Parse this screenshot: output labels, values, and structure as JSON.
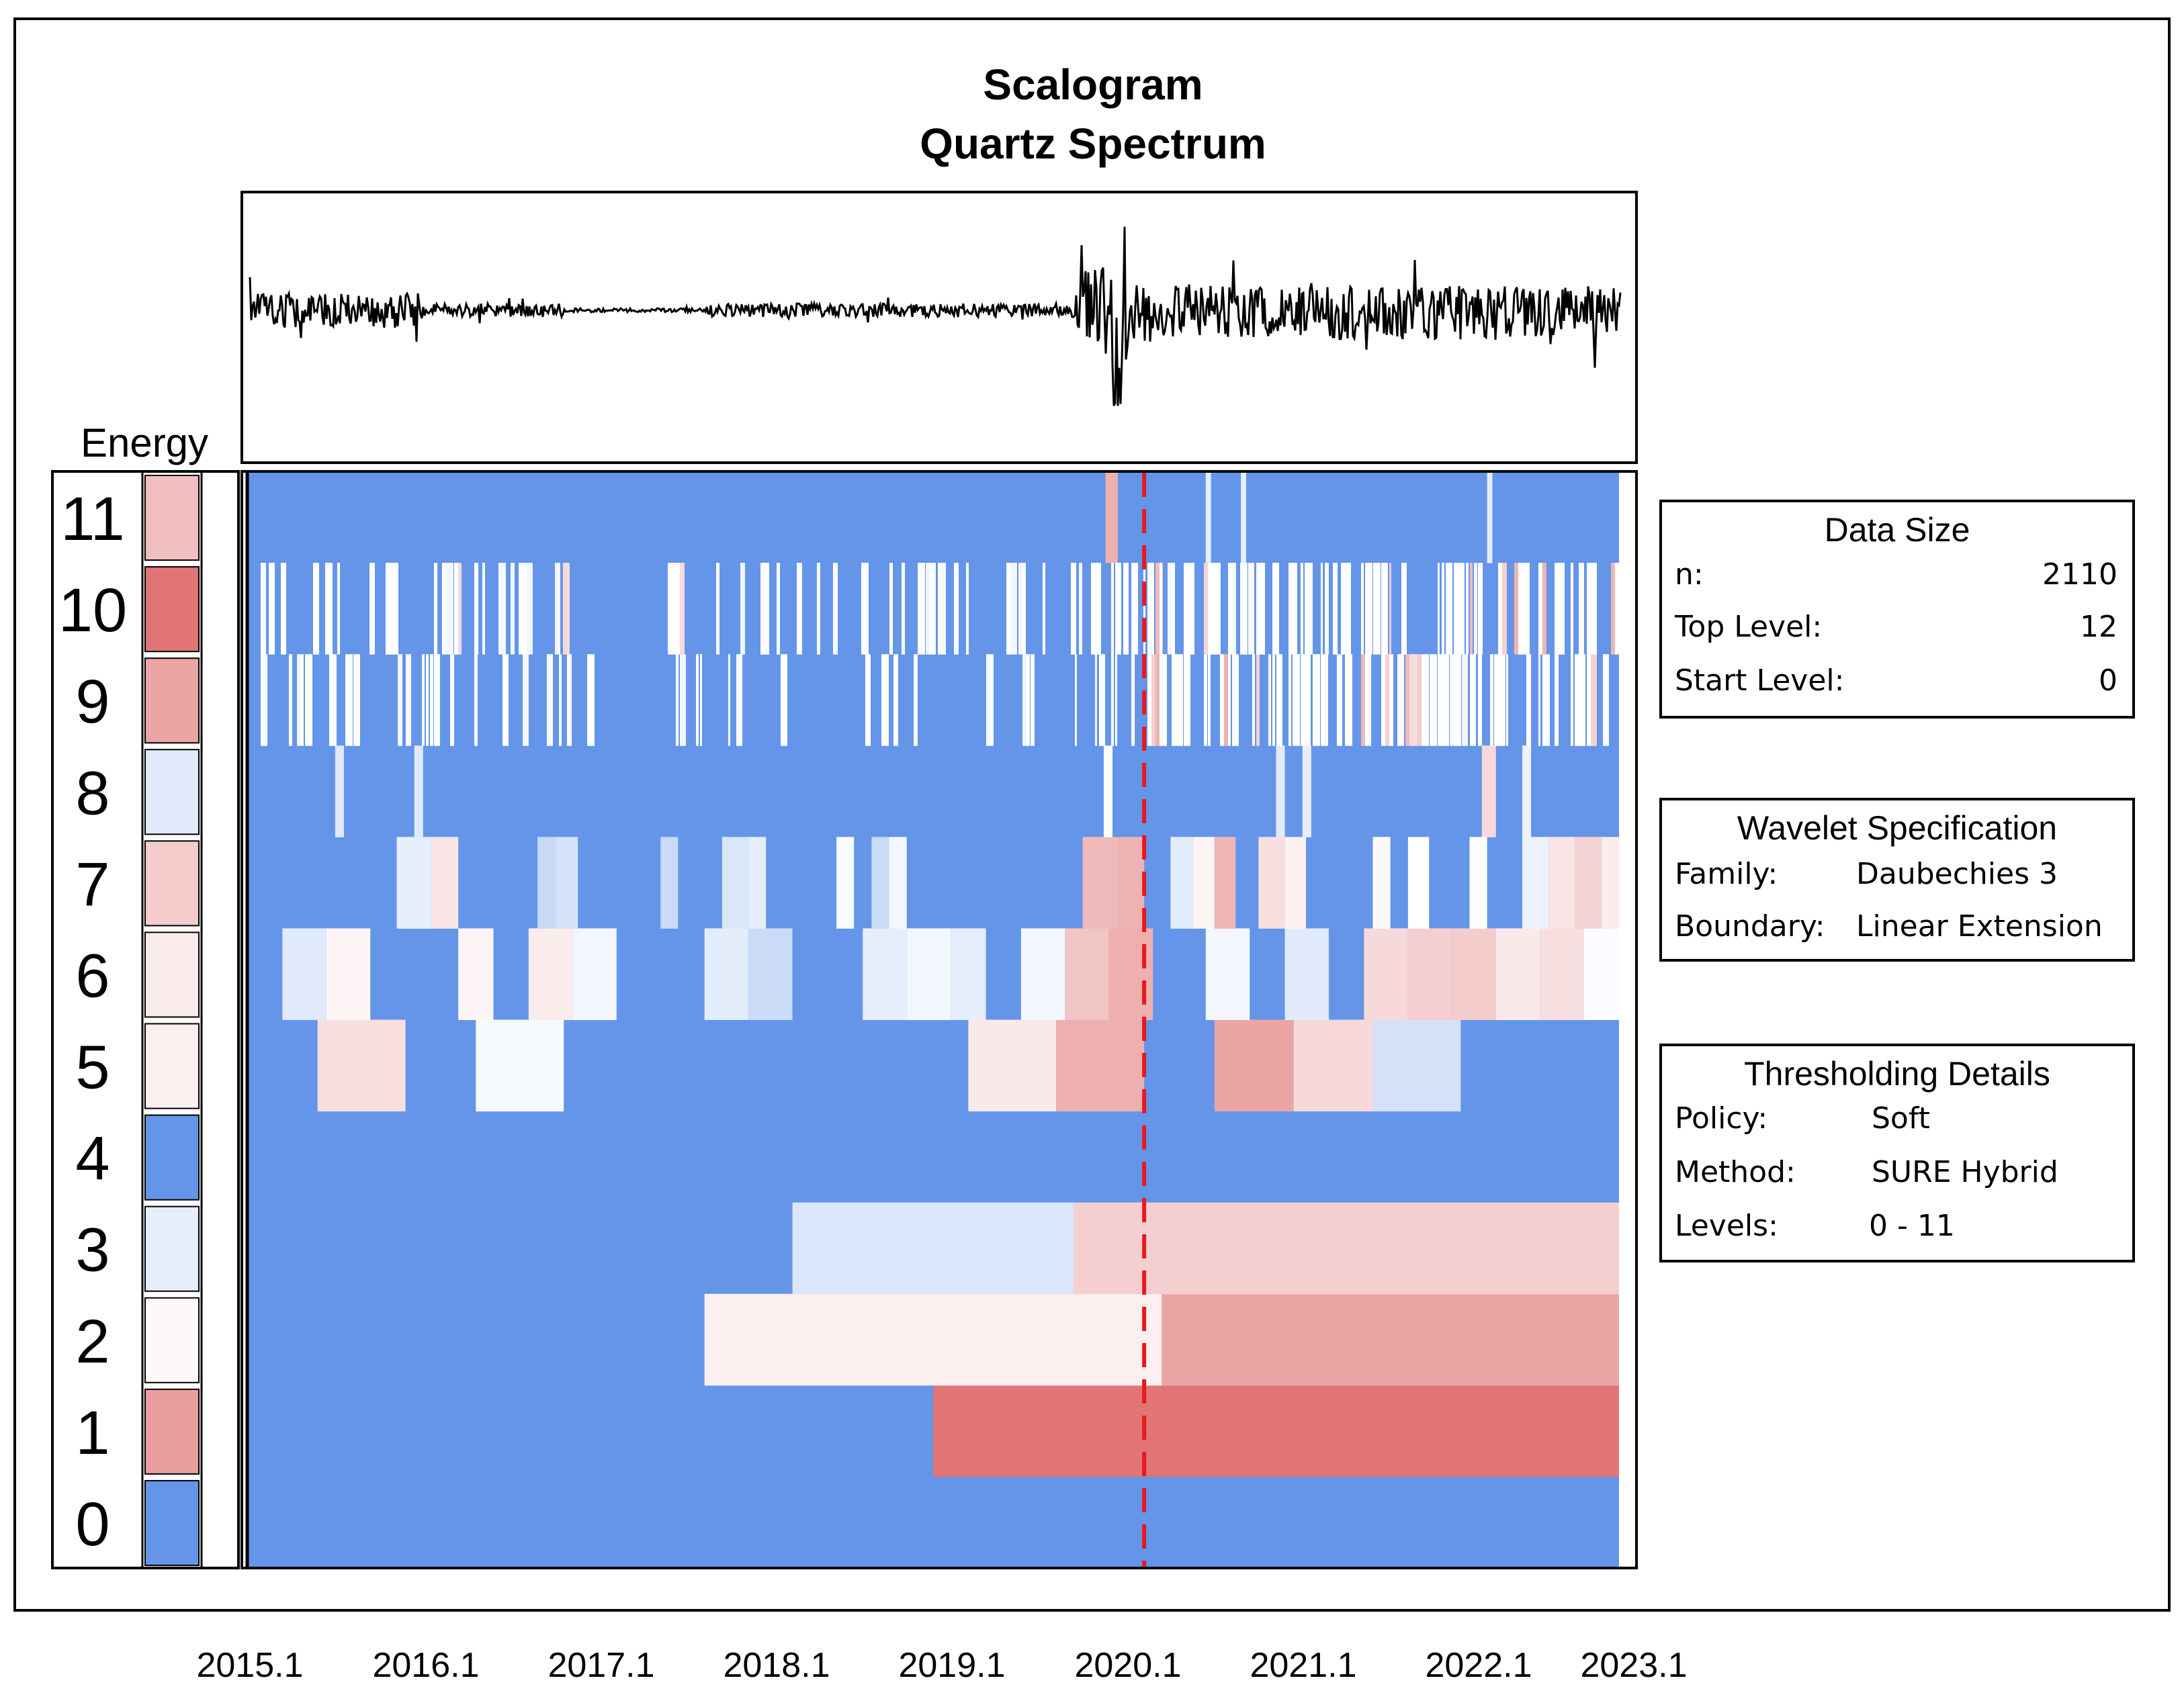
{
  "chart_data": {
    "type": "heatmap",
    "title": "Scalogram",
    "subtitle": "Quartz Spectrum",
    "energy_label": "Energy",
    "levels": [
      "0",
      "1",
      "2",
      "3",
      "4",
      "5",
      "6",
      "7",
      "8",
      "9",
      "10",
      "11"
    ],
    "x_ticks": [
      "2015.1",
      "2016.1",
      "2017.1",
      "2018.1",
      "2019.1",
      "2020.1",
      "2021.1",
      "2022.1",
      "2023.1"
    ],
    "x_range": [
      2015.1,
      2022.9
    ],
    "reference_line": {
      "x": 2020.2,
      "color": "#e8181e",
      "style": "dashed"
    },
    "colors": {
      "low": "#6495e8",
      "mid": "#ffffff",
      "high": "#dc5f5f",
      "line": "#000000"
    },
    "energy_by_level": [
      {
        "level": "0",
        "value": 0.0
      },
      {
        "level": "1",
        "value": 0.8
      },
      {
        "level": "2",
        "value": 0.52
      },
      {
        "level": "3",
        "value": 0.42
      },
      {
        "level": "4",
        "value": 0.0
      },
      {
        "level": "5",
        "value": 0.55
      },
      {
        "level": "6",
        "value": 0.56
      },
      {
        "level": "7",
        "value": 0.66
      },
      {
        "level": "8",
        "value": 0.4
      },
      {
        "level": "9",
        "value": 0.78
      },
      {
        "level": "10",
        "value": 0.93
      },
      {
        "level": "11",
        "value": 0.7
      }
    ],
    "scalogram_cells": [
      {
        "level": 1,
        "x0": 2019.0,
        "x1": 2022.9,
        "v": 0.93
      },
      {
        "level": 2,
        "x0": 2017.7,
        "x1": 2020.3,
        "v": 0.55
      },
      {
        "level": 2,
        "x0": 2020.3,
        "x1": 2022.9,
        "v": 0.78
      },
      {
        "level": 3,
        "x0": 2018.2,
        "x1": 2019.8,
        "v": 0.38
      },
      {
        "level": 3,
        "x0": 2019.8,
        "x1": 2022.9,
        "v": 0.65
      },
      {
        "level": 5,
        "x0": 2015.5,
        "x1": 2016.0,
        "v": 0.6
      },
      {
        "level": 5,
        "x0": 2016.4,
        "x1": 2016.9,
        "v": 0.47
      },
      {
        "level": 5,
        "x0": 2019.2,
        "x1": 2019.7,
        "v": 0.57
      },
      {
        "level": 5,
        "x0": 2019.7,
        "x1": 2020.2,
        "v": 0.75
      },
      {
        "level": 5,
        "x0": 2020.6,
        "x1": 2021.05,
        "v": 0.78
      },
      {
        "level": 5,
        "x0": 2021.05,
        "x1": 2021.5,
        "v": 0.62
      },
      {
        "level": 5,
        "x0": 2021.5,
        "x1": 2022.0,
        "v": 0.36
      },
      {
        "level": 6,
        "x0": 2015.3,
        "x1": 2015.55,
        "v": 0.4
      },
      {
        "level": 6,
        "x0": 2015.55,
        "x1": 2015.8,
        "v": 0.53
      },
      {
        "level": 6,
        "x0": 2016.3,
        "x1": 2016.5,
        "v": 0.53
      },
      {
        "level": 6,
        "x0": 2016.7,
        "x1": 2016.95,
        "v": 0.56
      },
      {
        "level": 6,
        "x0": 2016.95,
        "x1": 2017.2,
        "v": 0.46
      },
      {
        "level": 6,
        "x0": 2017.7,
        "x1": 2017.95,
        "v": 0.41
      },
      {
        "level": 6,
        "x0": 2017.95,
        "x1": 2018.2,
        "v": 0.33
      },
      {
        "level": 6,
        "x0": 2018.6,
        "x1": 2018.85,
        "v": 0.42
      },
      {
        "level": 6,
        "x0": 2018.85,
        "x1": 2019.1,
        "v": 0.46
      },
      {
        "level": 6,
        "x0": 2019.1,
        "x1": 2019.3,
        "v": 0.42
      },
      {
        "level": 6,
        "x0": 2019.5,
        "x1": 2019.75,
        "v": 0.46
      },
      {
        "level": 6,
        "x0": 2019.75,
        "x1": 2020.0,
        "v": 0.68
      },
      {
        "level": 6,
        "x0": 2020.0,
        "x1": 2020.25,
        "v": 0.75
      },
      {
        "level": 6,
        "x0": 2020.55,
        "x1": 2020.8,
        "v": 0.46
      },
      {
        "level": 6,
        "x0": 2021.0,
        "x1": 2021.25,
        "v": 0.4
      },
      {
        "level": 6,
        "x0": 2021.45,
        "x1": 2021.7,
        "v": 0.62
      },
      {
        "level": 6,
        "x0": 2021.7,
        "x1": 2021.95,
        "v": 0.65
      },
      {
        "level": 6,
        "x0": 2021.95,
        "x1": 2022.2,
        "v": 0.66
      },
      {
        "level": 6,
        "x0": 2022.2,
        "x1": 2022.45,
        "v": 0.57
      },
      {
        "level": 6,
        "x0": 2022.45,
        "x1": 2022.7,
        "v": 0.6
      },
      {
        "level": 6,
        "x0": 2022.7,
        "x1": 2022.9,
        "v": 0.48
      },
      {
        "level": 7,
        "x0": 2015.95,
        "x1": 2016.15,
        "v": 0.42
      },
      {
        "level": 7,
        "x0": 2016.15,
        "x1": 2016.3,
        "v": 0.58
      },
      {
        "level": 7,
        "x0": 2016.75,
        "x1": 2016.85,
        "v": 0.32
      },
      {
        "level": 7,
        "x0": 2016.85,
        "x1": 2016.98,
        "v": 0.36
      },
      {
        "level": 7,
        "x0": 2017.45,
        "x1": 2017.55,
        "v": 0.33
      },
      {
        "level": 7,
        "x0": 2017.8,
        "x1": 2017.95,
        "v": 0.38
      },
      {
        "level": 7,
        "x0": 2017.95,
        "x1": 2018.05,
        "v": 0.42
      },
      {
        "level": 7,
        "x0": 2018.45,
        "x1": 2018.55,
        "v": 0.48
      },
      {
        "level": 7,
        "x0": 2018.65,
        "x1": 2018.75,
        "v": 0.33
      },
      {
        "level": 7,
        "x0": 2018.75,
        "x1": 2018.85,
        "v": 0.46
      },
      {
        "level": 7,
        "x0": 2019.85,
        "x1": 2020.05,
        "v": 0.72
      },
      {
        "level": 7,
        "x0": 2020.05,
        "x1": 2020.2,
        "v": 0.74
      },
      {
        "level": 7,
        "x0": 2020.35,
        "x1": 2020.48,
        "v": 0.41
      },
      {
        "level": 7,
        "x0": 2020.48,
        "x1": 2020.6,
        "v": 0.53
      },
      {
        "level": 7,
        "x0": 2020.6,
        "x1": 2020.72,
        "v": 0.73
      },
      {
        "level": 7,
        "x0": 2020.85,
        "x1": 2021.0,
        "v": 0.6
      },
      {
        "level": 7,
        "x0": 2021.0,
        "x1": 2021.12,
        "v": 0.54
      },
      {
        "level": 7,
        "x0": 2021.5,
        "x1": 2021.6,
        "v": 0.52
      },
      {
        "level": 7,
        "x0": 2021.7,
        "x1": 2021.82,
        "v": 0.5
      },
      {
        "level": 7,
        "x0": 2022.05,
        "x1": 2022.15,
        "v": 0.5
      },
      {
        "level": 7,
        "x0": 2022.35,
        "x1": 2022.5,
        "v": 0.44
      },
      {
        "level": 7,
        "x0": 2022.5,
        "x1": 2022.65,
        "v": 0.58
      },
      {
        "level": 7,
        "x0": 2022.65,
        "x1": 2022.8,
        "v": 0.64
      },
      {
        "level": 7,
        "x0": 2022.8,
        "x1": 2022.9,
        "v": 0.56
      },
      {
        "level": 8,
        "x0": 2015.6,
        "x1": 2015.65,
        "v": 0.4
      },
      {
        "level": 8,
        "x0": 2016.05,
        "x1": 2016.1,
        "v": 0.4
      },
      {
        "level": 8,
        "x0": 2019.97,
        "x1": 2020.02,
        "v": 0.48
      },
      {
        "level": 8,
        "x0": 2020.95,
        "x1": 2021.0,
        "v": 0.4
      },
      {
        "level": 8,
        "x0": 2021.1,
        "x1": 2021.15,
        "v": 0.42
      },
      {
        "level": 8,
        "x0": 2022.12,
        "x1": 2022.2,
        "v": 0.62
      },
      {
        "level": 8,
        "x0": 2022.35,
        "x1": 2022.4,
        "v": 0.44
      },
      {
        "level": 11,
        "x0": 2019.98,
        "x1": 2020.05,
        "v": 0.75
      },
      {
        "level": 11,
        "x0": 2020.55,
        "x1": 2020.58,
        "v": 0.42
      },
      {
        "level": 11,
        "x0": 2020.75,
        "x1": 2020.78,
        "v": 0.42
      },
      {
        "level": 11,
        "x0": 2022.15,
        "x1": 2022.18,
        "v": 0.42
      }
    ]
  },
  "info_boxes": {
    "data_size": {
      "title": "Data Size",
      "rows": [
        {
          "label": "n:",
          "value": "2110"
        },
        {
          "label": "Top Level:",
          "value": "12"
        },
        {
          "label": "Start Level:",
          "value": "0"
        }
      ]
    },
    "wavelet": {
      "title": "Wavelet Specification",
      "rows": [
        {
          "label": "Family:",
          "value": "Daubechies 3"
        },
        {
          "label": "Boundary:",
          "value": "Linear Extension"
        }
      ]
    },
    "thresholding": {
      "title": "Thresholding Details",
      "rows": [
        {
          "label": "Policy:",
          "value": "Soft"
        },
        {
          "label": "Method:",
          "value": "SURE Hybrid"
        },
        {
          "label": "Levels:",
          "value": "0 - 11"
        }
      ]
    }
  }
}
